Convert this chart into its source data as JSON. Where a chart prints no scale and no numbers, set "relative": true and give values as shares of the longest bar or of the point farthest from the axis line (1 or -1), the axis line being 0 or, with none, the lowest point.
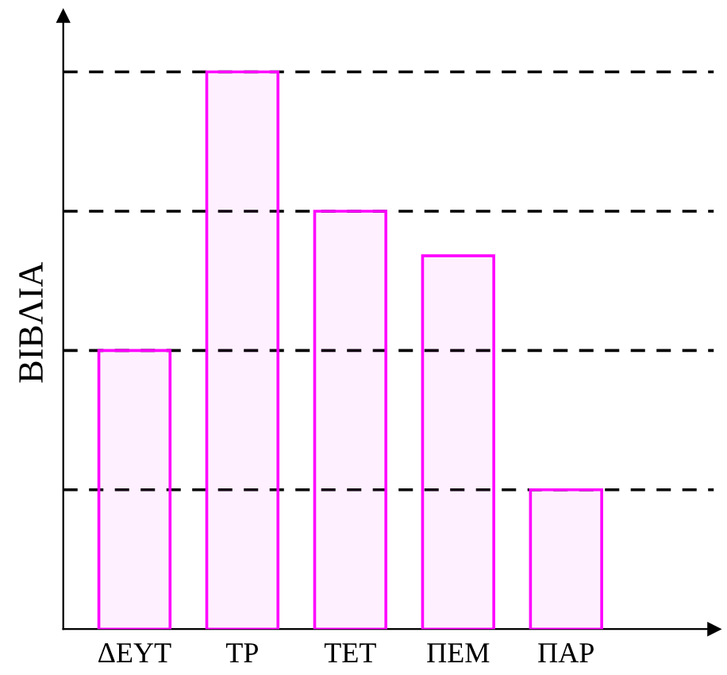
{
  "chart_data": {
    "type": "bar",
    "relative": true,
    "ylabel": "ΒΙΒΛΙΑ",
    "categories": [
      "ΔΕΥΤ",
      "ΤΡ",
      "ΤΕΤ",
      "ΠΕΜ",
      "ΠΑΡ"
    ],
    "values": [
      0.5,
      1,
      0.75,
      0.67,
      0.25
    ],
    "color": "#ff00ff",
    "ref_lines": [
      {
        "axis": "y",
        "value": 0.25,
        "line_style": "dashed",
        "color": "#000000"
      },
      {
        "axis": "y",
        "value": 0.5,
        "line_style": "dashed",
        "color": "#000000"
      },
      {
        "axis": "y",
        "value": 0.75,
        "line_style": "dashed",
        "color": "#000000"
      },
      {
        "axis": "y",
        "value": 1,
        "line_style": "dashed",
        "color": "#000000"
      }
    ]
  }
}
